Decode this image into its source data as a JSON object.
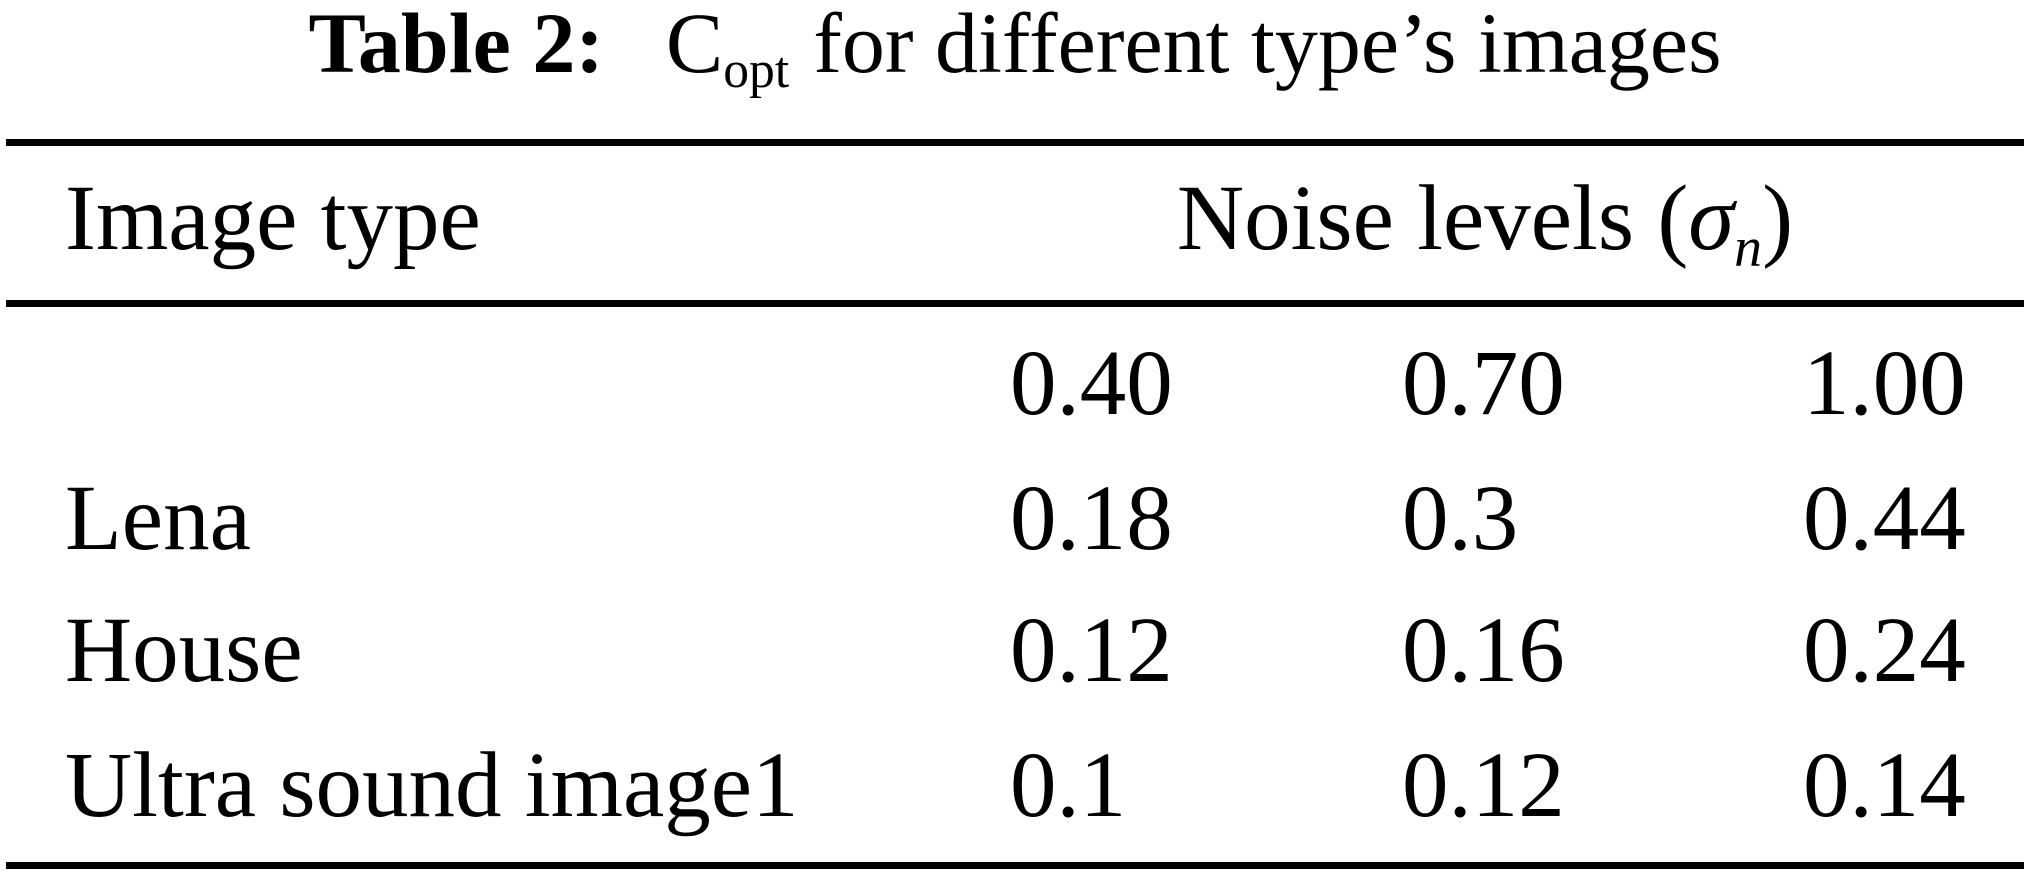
{
  "caption": {
    "label": "Table 2:",
    "term": "C",
    "term_sub": "opt",
    "rest": "for different type’s images"
  },
  "table": {
    "header": {
      "col1": "Image type",
      "noise_prefix": "Noise levels (",
      "noise_sigma": "σ",
      "noise_sub": "n",
      "noise_suffix": ")"
    },
    "noise_levels": [
      "0.40",
      "0.70",
      "1.00"
    ],
    "rows": [
      {
        "label": "Lena",
        "values": [
          "0.18",
          "0.3",
          "0.44"
        ]
      },
      {
        "label": "House",
        "values": [
          "0.12",
          "0.16",
          "0.24"
        ]
      },
      {
        "label": "Ultra sound image1",
        "values": [
          "0.1",
          "0.12",
          "0.14"
        ]
      }
    ]
  }
}
